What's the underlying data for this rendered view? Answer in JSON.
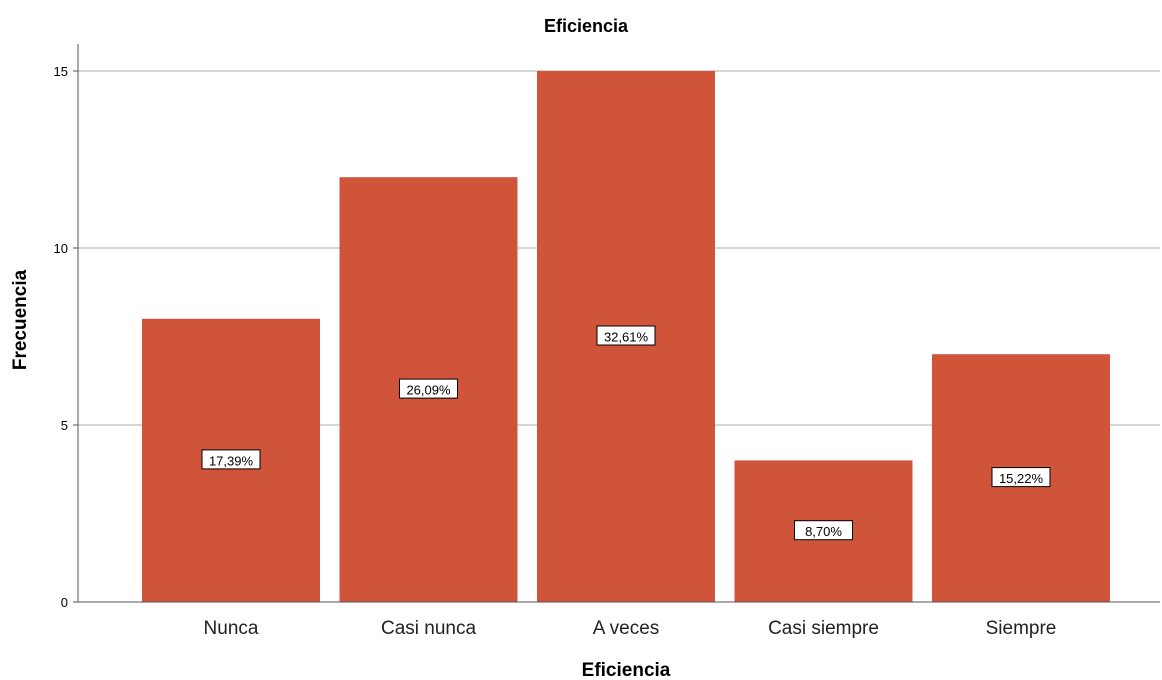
{
  "chart_data": {
    "type": "bar",
    "title": "Eficiencia",
    "xlabel": "Eficiencia",
    "ylabel": "Frecuencia",
    "categories": [
      "Nunca",
      "Casi nunca",
      "A veces",
      "Casi siempre",
      "Siempre"
    ],
    "values": [
      8,
      12,
      15,
      4,
      7
    ],
    "data_labels": [
      "17,39%",
      "26,09%",
      "32,61%",
      "8,70%",
      "15,22%"
    ],
    "yticks": [
      "0",
      "5",
      "10",
      "15"
    ],
    "ylim": [
      0,
      16
    ],
    "grid": true,
    "bar_color": "#d0543a",
    "grid_color": "#c8c8c8"
  }
}
